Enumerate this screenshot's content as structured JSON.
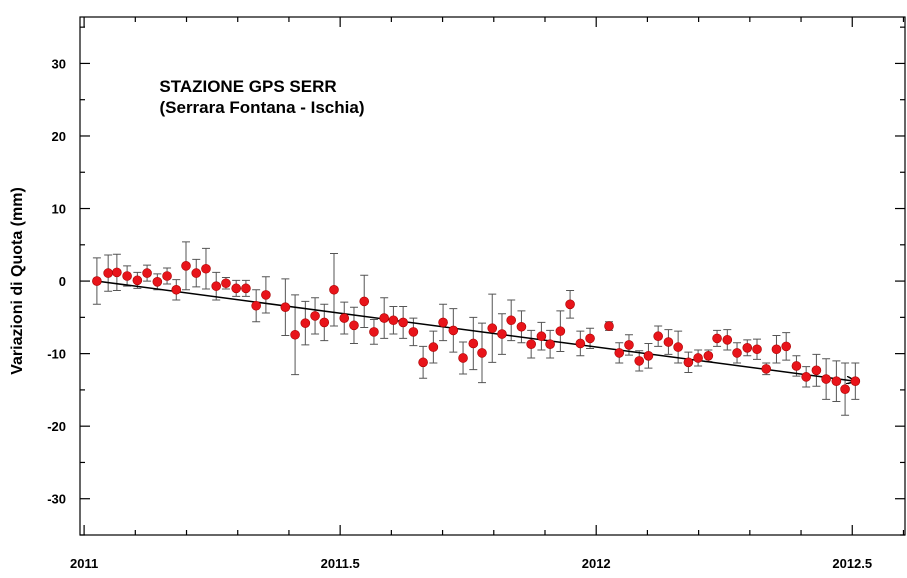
{
  "chart_data": {
    "type": "scatter",
    "title": "STAZIONE GPS SERR",
    "subtitle": "(Serrara Fontana - Ischia)",
    "y_label": "Variazioni di Quota (mm)",
    "xlim": [
      2010.992,
      2012.603
    ],
    "ylim": [
      -35,
      36.4
    ],
    "xticks": [
      2011,
      2011.5,
      2012,
      2012.5
    ],
    "yticks": [
      -30,
      -20,
      -10,
      0,
      10,
      20,
      30
    ],
    "x_minor_ticks": [
      2011.1,
      2011.2,
      2011.3,
      2011.4,
      2011.6,
      2011.7,
      2011.8,
      2011.9,
      2012.1,
      2012.2,
      2012.3,
      2012.4,
      2012.6
    ],
    "y_minor_ticks": [
      -35,
      -25,
      -15,
      -5,
      5,
      15,
      25,
      35
    ],
    "color": "#e8141a",
    "error_color": "#555555",
    "x": [
      2011.025,
      2011.047,
      2011.064,
      2011.084,
      2011.104,
      2011.123,
      2011.143,
      2011.162,
      2011.18,
      2011.199,
      2011.219,
      2011.238,
      2011.258,
      2011.277,
      2011.297,
      2011.316,
      2011.336,
      2011.355,
      2011.393,
      2011.412,
      2011.432,
      2011.451,
      2011.469,
      2011.488,
      2011.508,
      2011.527,
      2011.547,
      2011.566,
      2011.586,
      2011.604,
      2011.623,
      2011.643,
      2011.662,
      2011.682,
      2011.701,
      2011.721,
      2011.74,
      2011.76,
      2011.777,
      2011.797,
      2011.816,
      2011.834,
      2011.854,
      2011.873,
      2011.893,
      2011.91,
      2011.93,
      2011.949,
      2011.969,
      2011.988,
      2012.025,
      2012.045,
      2012.064,
      2012.084,
      2012.102,
      2012.121,
      2012.141,
      2012.16,
      2012.18,
      2012.199,
      2012.219,
      2012.236,
      2012.256,
      2012.275,
      2012.295,
      2012.314,
      2012.332,
      2012.352,
      2012.371,
      2012.391,
      2012.41,
      2012.43,
      2012.449,
      2012.469,
      2012.486,
      2012.506
    ],
    "values": [
      0,
      1.1,
      1.2,
      0.7,
      0.1,
      1.1,
      -0.1,
      0.7,
      -1.2,
      2.1,
      1.1,
      1.7,
      -0.7,
      -0.3,
      -1.0,
      -1.0,
      -3.4,
      -1.9,
      -3.6,
      -7.4,
      -5.8,
      -4.8,
      -5.7,
      -1.2,
      -5.1,
      -6.1,
      -2.8,
      -7.0,
      -5.1,
      -5.4,
      -5.7,
      -7.0,
      -11.2,
      -9.1,
      -5.7,
      -6.8,
      -10.6,
      -8.6,
      -9.9,
      -6.5,
      -7.3,
      -5.4,
      -6.3,
      -8.7,
      -7.6,
      -8.7,
      -6.9,
      -3.2,
      -8.6,
      -7.9,
      -6.2,
      -9.9,
      -8.8,
      -11.0,
      -10.3,
      -7.6,
      -8.4,
      -9.1,
      -11.2,
      -10.6,
      -10.3,
      -7.9,
      -8.1,
      -9.9,
      -9.2,
      -9.4,
      -12.1,
      -9.4,
      -9.0,
      -11.7,
      -13.2,
      -12.3,
      -13.5,
      -13.8,
      -14.9,
      -13.8
    ],
    "errors": [
      3.2,
      2.5,
      2.5,
      1.4,
      1.1,
      1.1,
      1.1,
      1.1,
      1.4,
      3.3,
      1.9,
      2.8,
      1.9,
      0.8,
      1.1,
      1.1,
      2.2,
      2.5,
      3.9,
      5.5,
      3.0,
      2.5,
      2.5,
      5.0,
      2.2,
      2.5,
      3.6,
      1.7,
      2.8,
      1.9,
      2.2,
      1.9,
      2.2,
      2.2,
      2.5,
      3.0,
      2.2,
      3.6,
      4.1,
      4.7,
      2.8,
      2.8,
      2.2,
      1.9,
      1.9,
      1.9,
      2.8,
      1.9,
      1.7,
      1.4,
      0.6,
      1.4,
      1.4,
      1.4,
      1.7,
      1.4,
      1.7,
      2.2,
      1.4,
      1.1,
      0.8,
      1.1,
      1.4,
      1.4,
      1.1,
      1.4,
      0.8,
      1.9,
      1.9,
      1.4,
      1.4,
      2.2,
      2.8,
      2.8,
      3.6,
      2.5
    ],
    "trend": {
      "x": [
        2011.025,
        2012.506
      ],
      "y": [
        0,
        -13.8
      ],
      "color": "#000000"
    }
  }
}
